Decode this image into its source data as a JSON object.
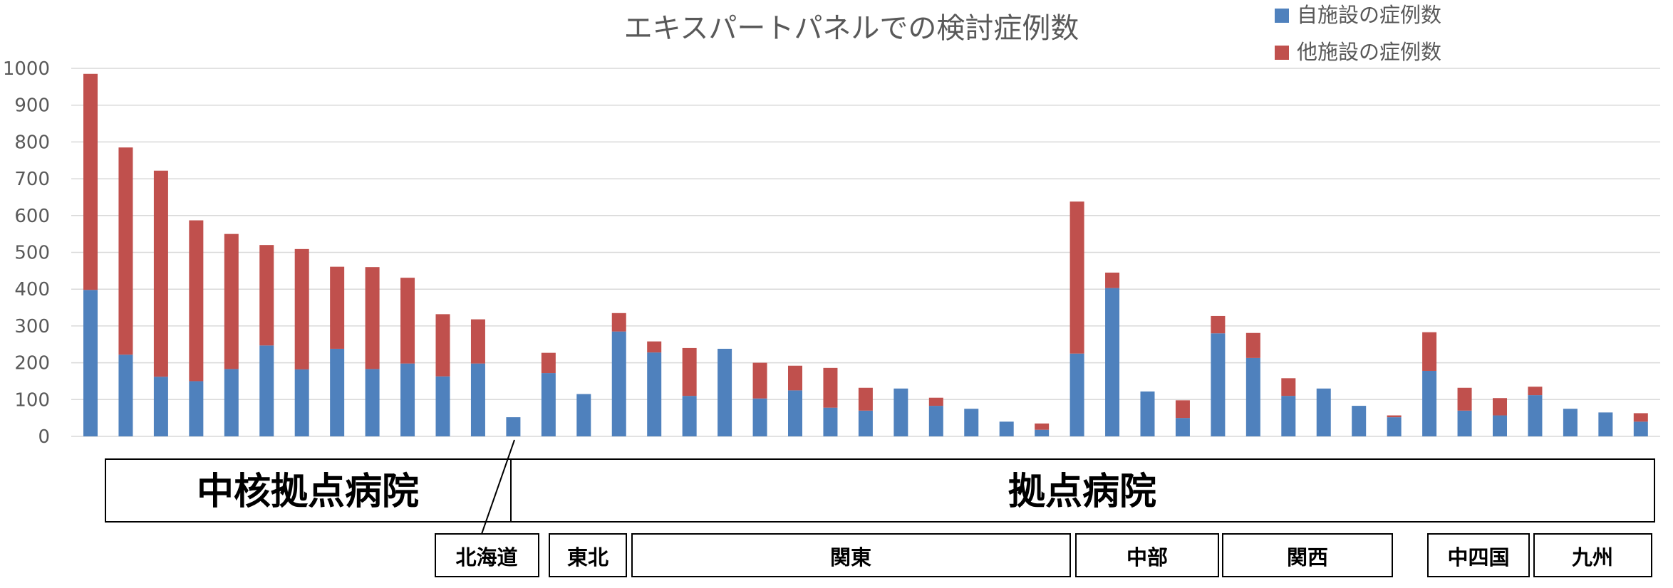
{
  "colors": {
    "own": "#4F81BD",
    "other": "#C0504D",
    "grid": "#D9D9D9",
    "text": "#595959",
    "box": "#000000"
  },
  "chart_data": {
    "type": "bar",
    "stacked": true,
    "title": "エキスパートパネルでの検討症例数",
    "ylim": [
      0,
      1000
    ],
    "yticks": [
      0,
      100,
      200,
      300,
      400,
      500,
      600,
      700,
      800,
      900,
      1000
    ],
    "grid": true,
    "legend_position": "top-right",
    "categories_count": 45,
    "series": [
      {
        "name": "自施設の症例数",
        "color_key": "own",
        "values": [
          398,
          222,
          162,
          150,
          183,
          247,
          182,
          238,
          183,
          198,
          163,
          198,
          52,
          172,
          115,
          285,
          228,
          110,
          238,
          103,
          125,
          78,
          70,
          130,
          83,
          75,
          40,
          18,
          225,
          403,
          122,
          50,
          280,
          213,
          110,
          130,
          83,
          52,
          178,
          70,
          57,
          112,
          75,
          65,
          40
        ]
      },
      {
        "name": "他施設の症例数",
        "color_key": "other",
        "values": [
          587,
          563,
          560,
          437,
          367,
          273,
          327,
          223,
          277,
          233,
          169,
          120,
          0,
          55,
          0,
          50,
          30,
          130,
          0,
          97,
          67,
          108,
          62,
          0,
          22,
          0,
          0,
          17,
          413,
          42,
          0,
          48,
          47,
          68,
          48,
          0,
          0,
          5,
          105,
          62,
          47,
          23,
          0,
          0,
          23
        ]
      }
    ],
    "groups": [
      {
        "label": "中核拠点病院",
        "start": 0,
        "end": 11
      },
      {
        "label": "拠点病院",
        "start": 12,
        "end": 44
      }
    ],
    "regions": [
      {
        "label": "北海道",
        "start": 12,
        "end": 12
      },
      {
        "label": "東北",
        "start": 13,
        "end": 14
      },
      {
        "label": "関東",
        "start": 15,
        "end": 27
      },
      {
        "label": "中部",
        "start": 28,
        "end": 31
      },
      {
        "label": "関西",
        "start": 32,
        "end": 36
      },
      {
        "label": "中四国",
        "start": 37,
        "end": 39
      },
      {
        "label": "九州",
        "start": 40,
        "end": 44
      }
    ]
  }
}
